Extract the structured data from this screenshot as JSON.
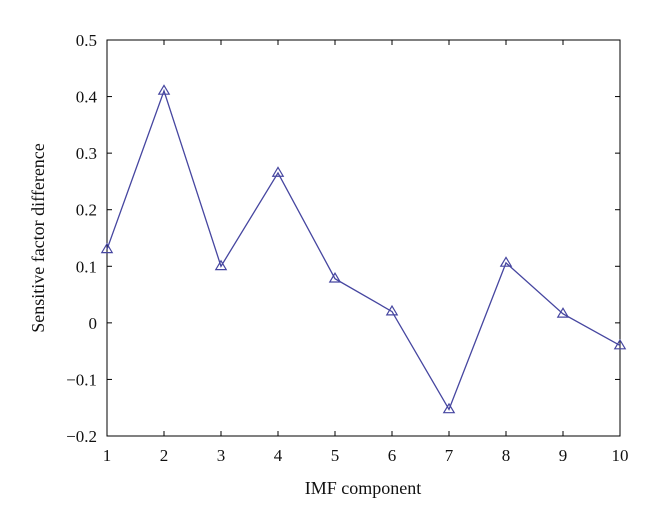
{
  "chart_data": {
    "type": "line",
    "xlabel": "IMF component",
    "ylabel": "Sensitive factor difference",
    "xlim": [
      1,
      10
    ],
    "ylim": [
      -0.2,
      0.5
    ],
    "xticks": [
      1,
      2,
      3,
      4,
      5,
      6,
      7,
      8,
      9,
      10
    ],
    "yticks": [
      -0.2,
      -0.1,
      0,
      0.1,
      0.2,
      0.3,
      0.4,
      0.5
    ],
    "ytick_labels": [
      "−0.2",
      "−0.1",
      "0",
      "0.1",
      "0.2",
      "0.3",
      "0.4",
      "0.5"
    ],
    "grid": false,
    "marker": "triangle",
    "series": [
      {
        "color": "#4646a0",
        "x": [
          1,
          2,
          3,
          4,
          5,
          6,
          7,
          8,
          9,
          10
        ],
        "y": [
          0.13,
          0.41,
          0.1,
          0.265,
          0.078,
          0.02,
          -0.153,
          0.106,
          0.016,
          -0.04
        ]
      }
    ]
  }
}
